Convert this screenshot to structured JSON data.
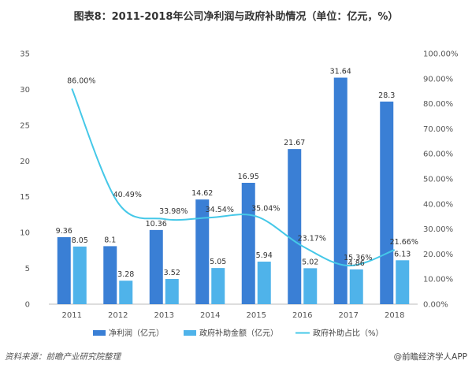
{
  "title": "图表8：2011-2018年公司净利润与政府补助情况（单位：亿元，%）",
  "source": "资料来源：前瞻产业研究院整理",
  "brand": "@前瞻经济学人APP",
  "colors": {
    "net_profit": "#3a7fd5",
    "subsidy": "#4fb3ea",
    "ratio": "#45c8e8"
  },
  "chart_data": {
    "type": "bar",
    "categories": [
      "2011",
      "2012",
      "2013",
      "2014",
      "2015",
      "2016",
      "2017",
      "2018"
    ],
    "series": [
      {
        "name": "净利润（亿元）",
        "type": "bar",
        "axis": "left",
        "values": [
          9.36,
          8.1,
          10.36,
          14.62,
          16.95,
          21.67,
          31.64,
          28.3
        ],
        "labels": [
          "9.36",
          "8.1",
          "10.36",
          "14.62",
          "16.95",
          "21.67",
          "31.64",
          "28.3"
        ]
      },
      {
        "name": "政府补助金额（亿元）",
        "type": "bar",
        "axis": "left",
        "values": [
          8.05,
          3.28,
          3.52,
          5.05,
          5.94,
          5.02,
          4.86,
          6.13
        ],
        "labels": [
          "8.05",
          "3.28",
          "3.52",
          "5.05",
          "5.94",
          "5.02",
          "4.86",
          "6.13"
        ]
      },
      {
        "name": "政府补助占比（%）",
        "type": "line",
        "axis": "right",
        "values": [
          86.0,
          40.49,
          33.98,
          34.54,
          35.04,
          23.17,
          15.36,
          21.66
        ],
        "labels": [
          "86.00%",
          "40.49%",
          "33.98%",
          "34.54%",
          "35.04%",
          "23.17%",
          "15.36%",
          "21.66%"
        ]
      }
    ],
    "ylim_left": [
      0,
      35
    ],
    "yticks_left": [
      "0",
      "5",
      "10",
      "15",
      "20",
      "25",
      "30",
      "35"
    ],
    "ylim_right": [
      0,
      100
    ],
    "yticks_right": [
      "0.00%",
      "10.00%",
      "20.00%",
      "30.00%",
      "40.00%",
      "50.00%",
      "60.00%",
      "70.00%",
      "80.00%",
      "90.00%",
      "100.00%"
    ],
    "grid": false,
    "legend_position": "bottom"
  }
}
